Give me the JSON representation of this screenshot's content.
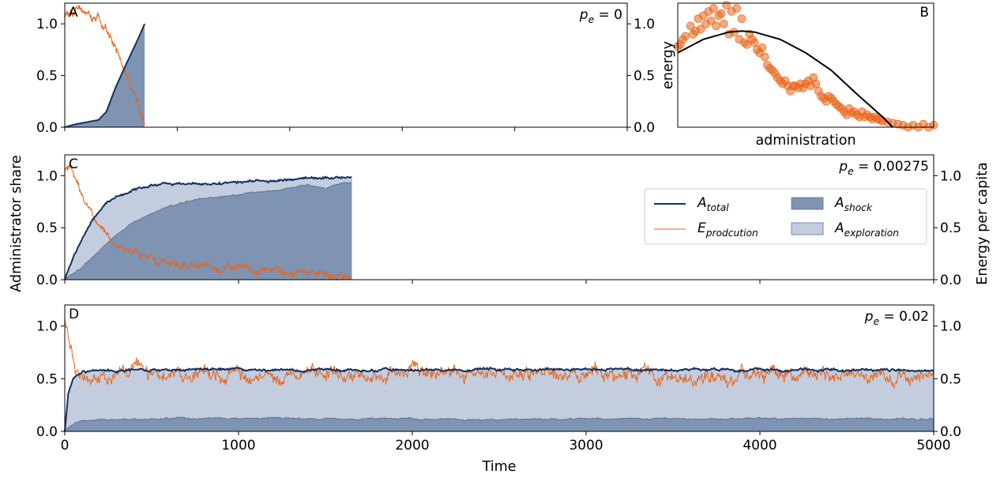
{
  "figure": {
    "ylabel_left": "Administrator share",
    "ylabel_right": "Energy per capita",
    "xlabel": "Time"
  },
  "legend": {
    "items": [
      {
        "label": "A",
        "sub": "total",
        "kind": "line",
        "color": "#14315f"
      },
      {
        "label": "E",
        "sub": "prodcution",
        "kind": "line",
        "color": "#e8651a"
      },
      {
        "label": "A",
        "sub": "shock",
        "kind": "patch",
        "color": "#7f93b3"
      },
      {
        "label": "A",
        "sub": "exploration",
        "kind": "patch",
        "color": "#c3cdde"
      }
    ]
  },
  "colors": {
    "total": "#14315f",
    "energy": "#e8651a",
    "shock": "#7f93b3",
    "exploration": "#c3cdde",
    "scatter": "#e8651a",
    "fit": "#000000"
  },
  "chart_data": [
    {
      "panel": "A",
      "type": "area",
      "param_label": "p",
      "param_sub": "e",
      "param_value": "= 0",
      "xlim": [
        0,
        5000
      ],
      "ylim_left": [
        0,
        1.2
      ],
      "ylim_right": [
        0,
        1.2
      ],
      "yticks_left": [
        "0.0",
        "0.5",
        "1.0"
      ],
      "yticks_right": [
        "0.0",
        "0.5",
        "1.0"
      ],
      "series": [
        {
          "name": "A_total",
          "x": [
            0,
            100,
            200,
            300,
            370,
            450,
            550,
            650,
            710
          ],
          "values": [
            0.0,
            0.03,
            0.05,
            0.07,
            0.15,
            0.38,
            0.62,
            0.85,
            1.0
          ]
        },
        {
          "name": "A_shock",
          "x": [
            0,
            100,
            200,
            300,
            370,
            450,
            550,
            650,
            710
          ],
          "values": [
            0.0,
            0.03,
            0.05,
            0.07,
            0.15,
            0.38,
            0.62,
            0.85,
            1.0
          ]
        },
        {
          "name": "E_prodcution",
          "x": [
            0,
            100,
            200,
            300,
            380,
            450,
            500,
            550,
            600,
            650,
            700,
            710
          ],
          "values": [
            1.1,
            1.15,
            1.12,
            1.05,
            0.9,
            0.75,
            0.62,
            0.48,
            0.35,
            0.22,
            0.08,
            0.0
          ]
        }
      ]
    },
    {
      "panel": "B",
      "type": "scatter",
      "xlabel": "administration",
      "ylabel": "energy",
      "ylim": [
        0,
        1.2
      ],
      "scatter_points": [
        [
          0.0,
          0.78
        ],
        [
          0.01,
          0.8
        ],
        [
          0.02,
          0.85
        ],
        [
          0.03,
          0.88
        ],
        [
          0.05,
          0.98
        ],
        [
          0.06,
          0.9
        ],
        [
          0.07,
          0.93
        ],
        [
          0.08,
          1.05
        ],
        [
          0.09,
          0.95
        ],
        [
          0.1,
          1.08
        ],
        [
          0.11,
          1.0
        ],
        [
          0.12,
          1.12
        ],
        [
          0.13,
          1.03
        ],
        [
          0.14,
          1.15
        ],
        [
          0.15,
          0.98
        ],
        [
          0.16,
          1.08
        ],
        [
          0.17,
          1.1
        ],
        [
          0.18,
          1.0
        ],
        [
          0.19,
          1.18
        ],
        [
          0.2,
          0.9
        ],
        [
          0.21,
          1.12
        ],
        [
          0.22,
          0.92
        ],
        [
          0.23,
          1.15
        ],
        [
          0.24,
          0.85
        ],
        [
          0.25,
          1.05
        ],
        [
          0.26,
          0.82
        ],
        [
          0.27,
          0.8
        ],
        [
          0.28,
          0.9
        ],
        [
          0.29,
          0.85
        ],
        [
          0.3,
          0.82
        ],
        [
          0.31,
          0.75
        ],
        [
          0.32,
          0.72
        ],
        [
          0.33,
          0.77
        ],
        [
          0.34,
          0.68
        ],
        [
          0.35,
          0.6
        ],
        [
          0.36,
          0.57
        ],
        [
          0.37,
          0.55
        ],
        [
          0.38,
          0.52
        ],
        [
          0.39,
          0.48
        ],
        [
          0.4,
          0.45
        ],
        [
          0.41,
          0.42
        ],
        [
          0.42,
          0.45
        ],
        [
          0.43,
          0.4
        ],
        [
          0.44,
          0.35
        ],
        [
          0.45,
          0.4
        ],
        [
          0.46,
          0.4
        ],
        [
          0.47,
          0.38
        ],
        [
          0.48,
          0.42
        ],
        [
          0.49,
          0.38
        ],
        [
          0.5,
          0.42
        ],
        [
          0.51,
          0.45
        ],
        [
          0.52,
          0.4
        ],
        [
          0.53,
          0.48
        ],
        [
          0.54,
          0.42
        ],
        [
          0.55,
          0.35
        ],
        [
          0.56,
          0.3
        ],
        [
          0.57,
          0.28
        ],
        [
          0.58,
          0.25
        ],
        [
          0.59,
          0.3
        ],
        [
          0.6,
          0.28
        ],
        [
          0.61,
          0.25
        ],
        [
          0.62,
          0.22
        ],
        [
          0.63,
          0.2
        ],
        [
          0.64,
          0.18
        ],
        [
          0.65,
          0.15
        ],
        [
          0.66,
          0.12
        ],
        [
          0.67,
          0.18
        ],
        [
          0.68,
          0.14
        ],
        [
          0.69,
          0.15
        ],
        [
          0.7,
          0.12
        ],
        [
          0.71,
          0.1
        ],
        [
          0.72,
          0.15
        ],
        [
          0.73,
          0.1
        ],
        [
          0.74,
          0.12
        ],
        [
          0.75,
          0.1
        ],
        [
          0.76,
          0.08
        ],
        [
          0.77,
          0.1
        ],
        [
          0.78,
          0.08
        ],
        [
          0.79,
          0.07
        ],
        [
          0.8,
          0.06
        ],
        [
          0.82,
          0.05
        ],
        [
          0.84,
          0.04
        ],
        [
          0.86,
          0.03
        ],
        [
          0.88,
          0.02
        ],
        [
          0.9,
          0.0
        ],
        [
          0.92,
          0.02
        ],
        [
          0.94,
          0.0
        ],
        [
          0.96,
          0.03
        ],
        [
          0.98,
          0.0
        ],
        [
          1.0,
          0.02
        ]
      ],
      "fit_curve": {
        "x": [
          0.0,
          0.1,
          0.2,
          0.25,
          0.3,
          0.4,
          0.5,
          0.6,
          0.7,
          0.8,
          0.84
        ],
        "values": [
          0.72,
          0.85,
          0.92,
          0.93,
          0.92,
          0.85,
          0.72,
          0.55,
          0.32,
          0.1,
          0.0
        ]
      }
    },
    {
      "panel": "C",
      "type": "area",
      "param_label": "p",
      "param_sub": "e",
      "param_value": "= 0.00275",
      "xlim": [
        0,
        5000
      ],
      "ylim_left": [
        0,
        1.2
      ],
      "ylim_right": [
        0,
        1.2
      ],
      "yticks_left": [
        "0.0",
        "0.5",
        "1.0"
      ],
      "yticks_right": [
        "0.0",
        "0.5",
        "1.0"
      ],
      "series": [
        {
          "name": "A_total",
          "x": [
            0,
            50,
            100,
            150,
            200,
            250,
            300,
            400,
            500,
            600,
            700,
            800,
            900,
            1000,
            1100,
            1200,
            1300,
            1400,
            1500,
            1600,
            1650
          ],
          "values": [
            0.0,
            0.22,
            0.4,
            0.55,
            0.66,
            0.75,
            0.8,
            0.87,
            0.91,
            0.93,
            0.92,
            0.94,
            0.92,
            0.94,
            0.95,
            0.94,
            0.97,
            0.97,
            0.98,
            0.98,
            1.0
          ]
        },
        {
          "name": "A_shock",
          "x": [
            0,
            100,
            200,
            300,
            400,
            500,
            600,
            700,
            800,
            900,
            1000,
            1100,
            1200,
            1300,
            1400,
            1500,
            1600,
            1650
          ],
          "values": [
            0.0,
            0.12,
            0.28,
            0.44,
            0.56,
            0.64,
            0.7,
            0.75,
            0.78,
            0.8,
            0.82,
            0.84,
            0.86,
            0.88,
            0.91,
            0.88,
            0.93,
            0.94
          ]
        },
        {
          "name": "E_prodcution",
          "x": [
            0,
            25,
            50,
            100,
            150,
            200,
            250,
            300,
            400,
            500,
            600,
            700,
            800,
            900,
            1000,
            1100,
            1200,
            1300,
            1400,
            1500,
            1600,
            1650
          ],
          "values": [
            1.05,
            1.1,
            1.0,
            0.8,
            0.65,
            0.52,
            0.42,
            0.35,
            0.26,
            0.2,
            0.17,
            0.15,
            0.12,
            0.11,
            0.14,
            0.1,
            0.08,
            0.07,
            0.05,
            0.06,
            0.05,
            0.03
          ]
        }
      ]
    },
    {
      "panel": "D",
      "type": "area",
      "param_label": "p",
      "param_sub": "e",
      "param_value": "= 0.02",
      "xlim": [
        0,
        5000
      ],
      "ylim_left": [
        0,
        1.2
      ],
      "ylim_right": [
        0,
        1.2
      ],
      "yticks_left": [
        "0.0",
        "0.5",
        "1.0"
      ],
      "yticks_right": [
        "0.0",
        "0.5",
        "1.0"
      ],
      "xticks": [
        "0",
        "1000",
        "2000",
        "3000",
        "4000",
        "5000"
      ],
      "series": [
        {
          "name": "A_total",
          "x": [
            0,
            20,
            50,
            100,
            200,
            500,
            1000,
            1500,
            2000,
            2500,
            3000,
            3500,
            4000,
            4500,
            5000
          ],
          "values": [
            0.0,
            0.35,
            0.5,
            0.56,
            0.58,
            0.58,
            0.59,
            0.58,
            0.58,
            0.58,
            0.59,
            0.58,
            0.59,
            0.58,
            0.58
          ]
        },
        {
          "name": "A_shock",
          "x": [
            0,
            20,
            50,
            100,
            200,
            500,
            1000,
            1500,
            2000,
            2500,
            3000,
            3500,
            4000,
            4500,
            5000
          ],
          "values": [
            0.0,
            0.04,
            0.07,
            0.1,
            0.11,
            0.12,
            0.13,
            0.12,
            0.12,
            0.11,
            0.12,
            0.12,
            0.12,
            0.12,
            0.12
          ]
        },
        {
          "name": "E_prodcution",
          "x": [
            0,
            10,
            30,
            60,
            100,
            200,
            500,
            1000,
            1500,
            2000,
            2500,
            3000,
            3500,
            4000,
            4500,
            5000
          ],
          "values": [
            1.1,
            1.0,
            0.8,
            0.62,
            0.56,
            0.54,
            0.54,
            0.54,
            0.53,
            0.54,
            0.53,
            0.54,
            0.53,
            0.54,
            0.53,
            0.54
          ]
        }
      ]
    }
  ]
}
